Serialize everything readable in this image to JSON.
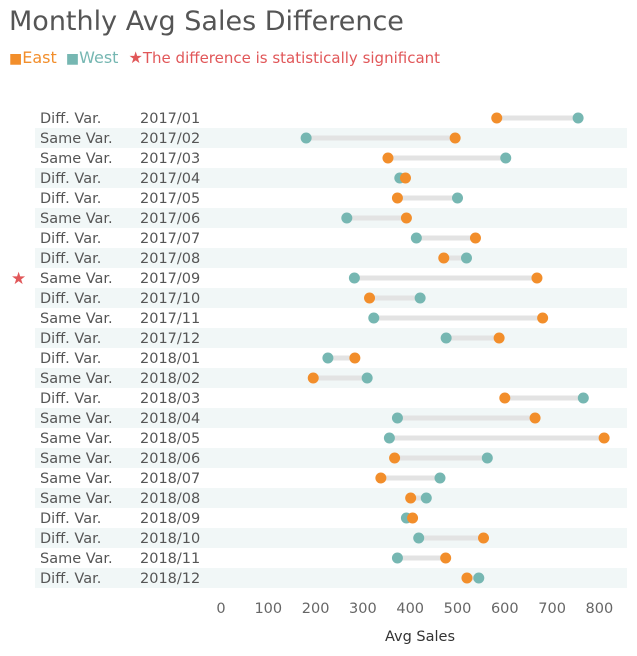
{
  "title": "Monthly Avg Sales Difference",
  "legend": {
    "east_marker": "■",
    "east_label": "East",
    "west_marker": "■",
    "west_label": "West",
    "sig_marker": "★",
    "sig_label": "The difference is statistically significant"
  },
  "colors": {
    "east": "#F28E2B",
    "west": "#76B7B2",
    "significant": "#E15759",
    "connector": "#E3E3E3",
    "band": "#F1F7F7",
    "text": "#555555"
  },
  "chart_data": {
    "type": "dot-range",
    "xlabel": "Avg Sales",
    "xlim": [
      0,
      800
    ],
    "xticks": [
      0,
      100,
      200,
      300,
      400,
      500,
      600,
      700,
      800
    ],
    "grid": false,
    "rows": [
      {
        "month": "2017/01",
        "variance": "Diff. Var.",
        "east": 583,
        "west": 755,
        "significant": false
      },
      {
        "month": "2017/02",
        "variance": "Same Var.",
        "east": 495,
        "west": 180,
        "significant": false
      },
      {
        "month": "2017/03",
        "variance": "Same Var.",
        "east": 353,
        "west": 602,
        "significant": false
      },
      {
        "month": "2017/04",
        "variance": "Diff. Var.",
        "east": 390,
        "west": 378,
        "significant": false
      },
      {
        "month": "2017/05",
        "variance": "Diff. Var.",
        "east": 373,
        "west": 500,
        "significant": false
      },
      {
        "month": "2017/06",
        "variance": "Same Var.",
        "east": 392,
        "west": 266,
        "significant": false
      },
      {
        "month": "2017/07",
        "variance": "Diff. Var.",
        "east": 538,
        "west": 413,
        "significant": false
      },
      {
        "month": "2017/08",
        "variance": "Diff. Var.",
        "east": 471,
        "west": 519,
        "significant": false
      },
      {
        "month": "2017/09",
        "variance": "Same Var.",
        "east": 668,
        "west": 282,
        "significant": true
      },
      {
        "month": "2017/10",
        "variance": "Diff. Var.",
        "east": 314,
        "west": 421,
        "significant": false
      },
      {
        "month": "2017/11",
        "variance": "Same Var.",
        "east": 680,
        "west": 323,
        "significant": false
      },
      {
        "month": "2017/12",
        "variance": "Diff. Var.",
        "east": 588,
        "west": 476,
        "significant": false
      },
      {
        "month": "2018/01",
        "variance": "Diff. Var.",
        "east": 283,
        "west": 226,
        "significant": false
      },
      {
        "month": "2018/02",
        "variance": "Same Var.",
        "east": 195,
        "west": 309,
        "significant": false
      },
      {
        "month": "2018/03",
        "variance": "Diff. Var.",
        "east": 600,
        "west": 766,
        "significant": false
      },
      {
        "month": "2018/04",
        "variance": "Same Var.",
        "east": 664,
        "west": 373,
        "significant": false
      },
      {
        "month": "2018/05",
        "variance": "Same Var.",
        "east": 810,
        "west": 356,
        "significant": false
      },
      {
        "month": "2018/06",
        "variance": "Same Var.",
        "east": 367,
        "west": 563,
        "significant": false
      },
      {
        "month": "2018/07",
        "variance": "Same Var.",
        "east": 338,
        "west": 463,
        "significant": false
      },
      {
        "month": "2018/08",
        "variance": "Same Var.",
        "east": 401,
        "west": 434,
        "significant": false
      },
      {
        "month": "2018/09",
        "variance": "Diff. Var.",
        "east": 405,
        "west": 392,
        "significant": false
      },
      {
        "month": "2018/10",
        "variance": "Diff. Var.",
        "east": 555,
        "west": 418,
        "significant": false
      },
      {
        "month": "2018/11",
        "variance": "Same Var.",
        "east": 475,
        "west": 373,
        "significant": false
      },
      {
        "month": "2018/12",
        "variance": "Diff. Var.",
        "east": 520,
        "west": 545,
        "significant": false
      }
    ]
  }
}
